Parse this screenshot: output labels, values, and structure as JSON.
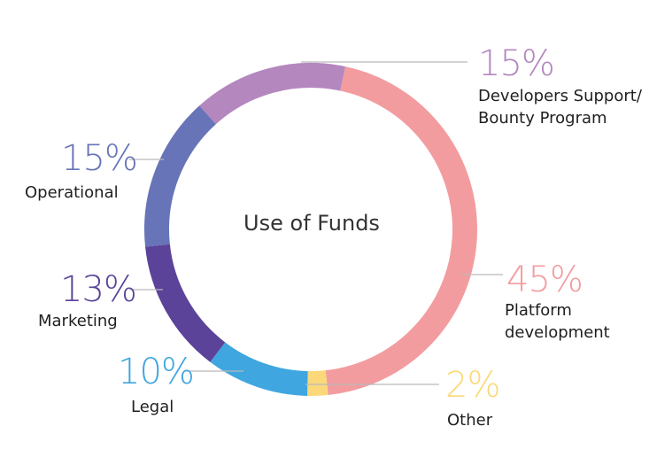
{
  "chart_data": {
    "type": "pie",
    "title": "Use of Funds",
    "slices": [
      {
        "key": "platform",
        "label_lines": [
          "Platform",
          "development"
        ],
        "value": 45,
        "display": "45%",
        "color": "#f39c9f"
      },
      {
        "key": "other",
        "label_lines": [
          "Other"
        ],
        "value": 2,
        "display": "2%",
        "color": "#fbd97a"
      },
      {
        "key": "legal",
        "label_lines": [
          "Legal"
        ],
        "value": 10,
        "display": "10%",
        "color": "#3fa6e0"
      },
      {
        "key": "marketing",
        "label_lines": [
          "Marketing"
        ],
        "value": 13,
        "display": "13%",
        "color": "#5a4398"
      },
      {
        "key": "operational",
        "label_lines": [
          "Operational"
        ],
        "value": 15,
        "display": "15%",
        "color": "#6774b8"
      },
      {
        "key": "developers",
        "label_lines": [
          "Developers Support/",
          "Bounty Program"
        ],
        "value": 15,
        "display": "15%",
        "color": "#b487bf"
      }
    ]
  }
}
